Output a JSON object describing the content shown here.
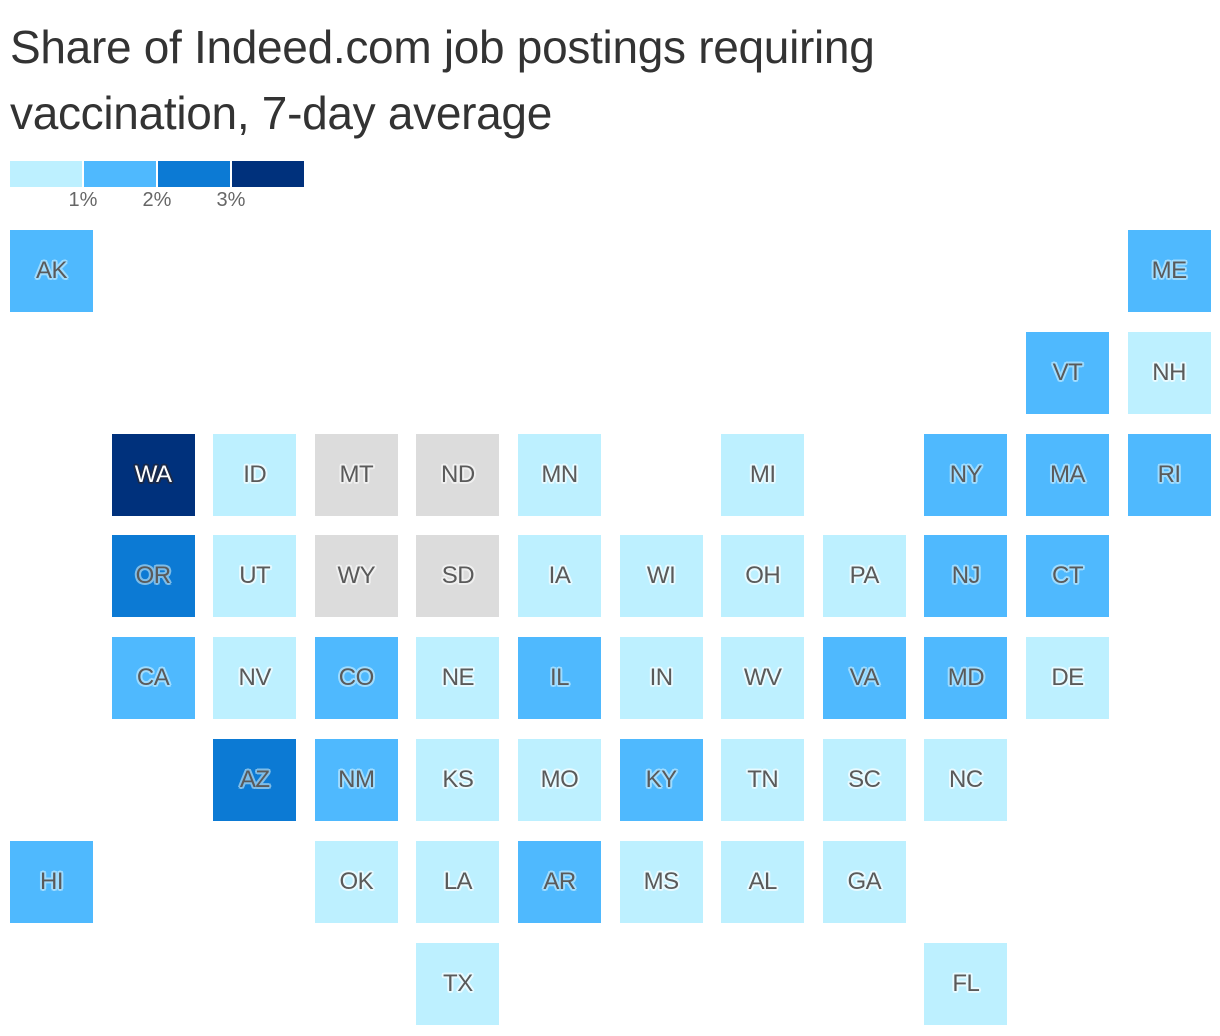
{
  "title": "Share of Indeed.com job postings requiring vaccination, 7-day average",
  "legend": {
    "bins": [
      {
        "color": "#bdf0ff",
        "range": "<1%"
      },
      {
        "color": "#4fb9fe",
        "range": "1-2%"
      },
      {
        "color": "#0c7ad4",
        "range": "2-3%"
      },
      {
        "color": "#00317c",
        "range": ">3%"
      }
    ],
    "ticks": [
      "1%",
      "2%",
      "3%"
    ],
    "no_data_color": "#dcdcdc"
  },
  "chart_data": {
    "type": "heatmap",
    "subtype": "tile-grid-map",
    "title": "Share of Indeed.com job postings requiring vaccination, 7-day average",
    "legend_ticks": [
      "1%",
      "2%",
      "3%"
    ],
    "bins": [
      "<1%",
      "1-2%",
      "2-3%",
      ">3%",
      "no data"
    ],
    "states": [
      {
        "state": "AK",
        "row": 0,
        "col": 0,
        "bin": "1-2%"
      },
      {
        "state": "ME",
        "row": 0,
        "col": 11,
        "bin": "1-2%"
      },
      {
        "state": "VT",
        "row": 1,
        "col": 10,
        "bin": "1-2%"
      },
      {
        "state": "NH",
        "row": 1,
        "col": 11,
        "bin": "<1%"
      },
      {
        "state": "WA",
        "row": 2,
        "col": 1,
        "bin": ">3%"
      },
      {
        "state": "ID",
        "row": 2,
        "col": 2,
        "bin": "<1%"
      },
      {
        "state": "MT",
        "row": 2,
        "col": 3,
        "bin": "no data"
      },
      {
        "state": "ND",
        "row": 2,
        "col": 4,
        "bin": "no data"
      },
      {
        "state": "MN",
        "row": 2,
        "col": 5,
        "bin": "<1%"
      },
      {
        "state": "MI",
        "row": 2,
        "col": 7,
        "bin": "<1%"
      },
      {
        "state": "NY",
        "row": 2,
        "col": 9,
        "bin": "1-2%"
      },
      {
        "state": "MA",
        "row": 2,
        "col": 10,
        "bin": "1-2%"
      },
      {
        "state": "RI",
        "row": 2,
        "col": 11,
        "bin": "1-2%"
      },
      {
        "state": "OR",
        "row": 3,
        "col": 1,
        "bin": "2-3%"
      },
      {
        "state": "UT",
        "row": 3,
        "col": 2,
        "bin": "<1%"
      },
      {
        "state": "WY",
        "row": 3,
        "col": 3,
        "bin": "no data"
      },
      {
        "state": "SD",
        "row": 3,
        "col": 4,
        "bin": "no data"
      },
      {
        "state": "IA",
        "row": 3,
        "col": 5,
        "bin": "<1%"
      },
      {
        "state": "WI",
        "row": 3,
        "col": 6,
        "bin": "<1%"
      },
      {
        "state": "OH",
        "row": 3,
        "col": 7,
        "bin": "<1%"
      },
      {
        "state": "PA",
        "row": 3,
        "col": 8,
        "bin": "<1%"
      },
      {
        "state": "NJ",
        "row": 3,
        "col": 9,
        "bin": "1-2%"
      },
      {
        "state": "CT",
        "row": 3,
        "col": 10,
        "bin": "1-2%"
      },
      {
        "state": "CA",
        "row": 4,
        "col": 1,
        "bin": "1-2%"
      },
      {
        "state": "NV",
        "row": 4,
        "col": 2,
        "bin": "<1%"
      },
      {
        "state": "CO",
        "row": 4,
        "col": 3,
        "bin": "1-2%"
      },
      {
        "state": "NE",
        "row": 4,
        "col": 4,
        "bin": "<1%"
      },
      {
        "state": "IL",
        "row": 4,
        "col": 5,
        "bin": "1-2%"
      },
      {
        "state": "IN",
        "row": 4,
        "col": 6,
        "bin": "<1%"
      },
      {
        "state": "WV",
        "row": 4,
        "col": 7,
        "bin": "<1%"
      },
      {
        "state": "VA",
        "row": 4,
        "col": 8,
        "bin": "1-2%"
      },
      {
        "state": "MD",
        "row": 4,
        "col": 9,
        "bin": "1-2%"
      },
      {
        "state": "DE",
        "row": 4,
        "col": 10,
        "bin": "<1%"
      },
      {
        "state": "AZ",
        "row": 5,
        "col": 2,
        "bin": "2-3%"
      },
      {
        "state": "NM",
        "row": 5,
        "col": 3,
        "bin": "1-2%"
      },
      {
        "state": "KS",
        "row": 5,
        "col": 4,
        "bin": "<1%"
      },
      {
        "state": "MO",
        "row": 5,
        "col": 5,
        "bin": "<1%"
      },
      {
        "state": "KY",
        "row": 5,
        "col": 6,
        "bin": "1-2%"
      },
      {
        "state": "TN",
        "row": 5,
        "col": 7,
        "bin": "<1%"
      },
      {
        "state": "SC",
        "row": 5,
        "col": 8,
        "bin": "<1%"
      },
      {
        "state": "NC",
        "row": 5,
        "col": 9,
        "bin": "<1%"
      },
      {
        "state": "HI",
        "row": 6,
        "col": 0,
        "bin": "1-2%"
      },
      {
        "state": "OK",
        "row": 6,
        "col": 3,
        "bin": "<1%"
      },
      {
        "state": "LA",
        "row": 6,
        "col": 4,
        "bin": "<1%"
      },
      {
        "state": "AR",
        "row": 6,
        "col": 5,
        "bin": "1-2%"
      },
      {
        "state": "MS",
        "row": 6,
        "col": 6,
        "bin": "<1%"
      },
      {
        "state": "AL",
        "row": 6,
        "col": 7,
        "bin": "<1%"
      },
      {
        "state": "GA",
        "row": 6,
        "col": 8,
        "bin": "<1%"
      },
      {
        "state": "TX",
        "row": 7,
        "col": 4,
        "bin": "<1%"
      },
      {
        "state": "FL",
        "row": 7,
        "col": 9,
        "bin": "<1%"
      }
    ]
  }
}
